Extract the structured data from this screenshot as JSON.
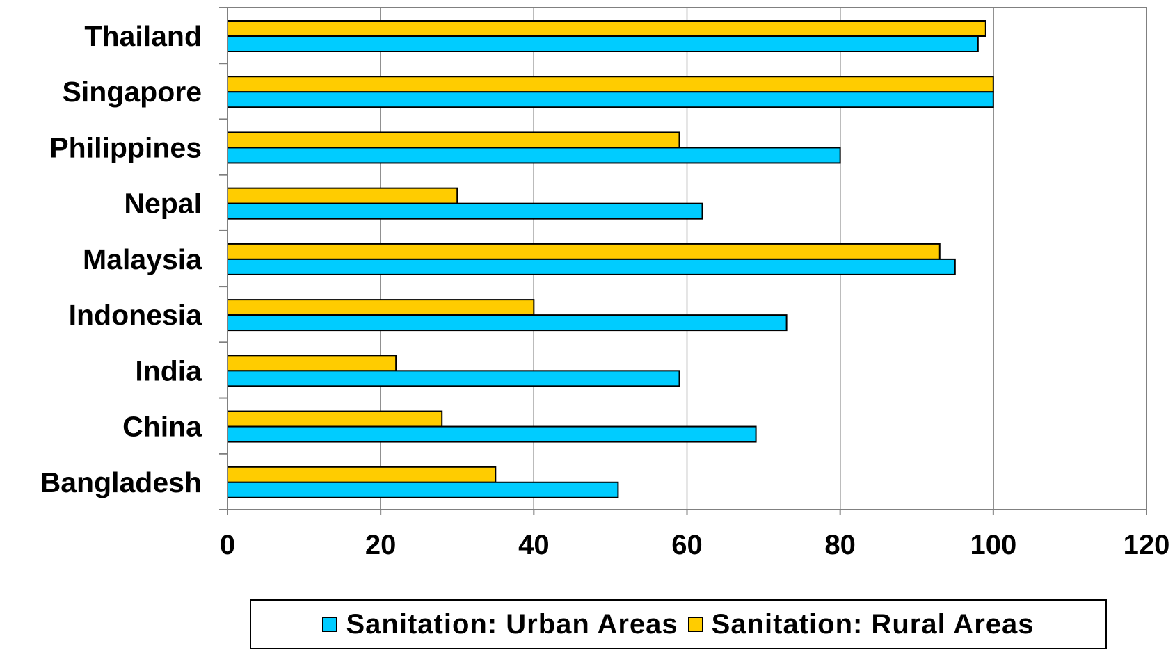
{
  "chart_data": {
    "type": "bar",
    "orientation": "horizontal",
    "categories": [
      "Thailand",
      "Singapore",
      "Philippines",
      "Nepal",
      "Malaysia",
      "Indonesia",
      "India",
      "China",
      "Bangladesh"
    ],
    "series": [
      {
        "name": "Sanitation: Urban Areas",
        "color": "#00CCFF",
        "values": [
          98,
          100,
          80,
          62,
          95,
          73,
          59,
          69,
          51
        ]
      },
      {
        "name": "Sanitation: Rural Areas",
        "color": "#FFCC00",
        "values": [
          99,
          100,
          59,
          30,
          93,
          40,
          22,
          28,
          35
        ]
      }
    ],
    "xlim": [
      0,
      120
    ],
    "xticks": [
      "0",
      "20",
      "40",
      "60",
      "80",
      "100",
      "120"
    ],
    "grid": true,
    "legend_position": "bottom"
  },
  "legend": {
    "urban_label": "Sanitation: Urban Areas",
    "rural_label": "Sanitation: Rural Areas"
  }
}
